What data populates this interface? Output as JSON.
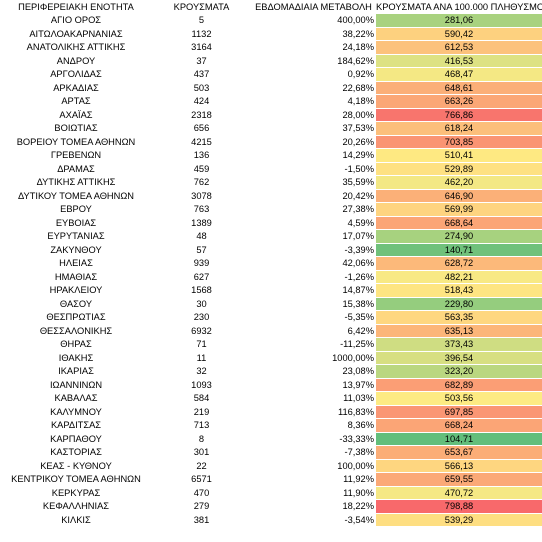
{
  "table": {
    "headers": {
      "region": "ΠΕΡΙΦΕΡΕΙΑΚΗ ΕΝΟΤΗΤΑ",
      "cases": "ΚΡΟΥΣΜΑΤΑ",
      "weekly_change": "ΕΒΔΟΜΑΔΙΑΙΑ ΜΕΤΑΒΟΛΗ",
      "per_100k": "ΚΡΟΥΣΜΑΤΑ ΑΝΑ 100.000 ΠΛΗΘΥΣΜΟ"
    },
    "rows": [
      {
        "region": "ΑΓΙΟ ΟΡΟΣ",
        "cases": "5",
        "change": "400,00%",
        "rate": "281,06",
        "color": "#a9d27f"
      },
      {
        "region": "ΑΙΤΩΛΟΑΚΑΡΝΑΝΙΑΣ",
        "cases": "1132",
        "change": "38,22%",
        "rate": "590,42",
        "color": "#fdd17f"
      },
      {
        "region": "ΑΝΑΤΟΛΙΚΗΣ ΑΤΤΙΚΗΣ",
        "cases": "3164",
        "change": "24,18%",
        "rate": "612,53",
        "color": "#fcc27c"
      },
      {
        "region": "ΑΝΔΡΟΥ",
        "cases": "37",
        "change": "184,62%",
        "rate": "416,53",
        "color": "#dde283"
      },
      {
        "region": "ΑΡΓΟΛΙΔΑΣ",
        "cases": "437",
        "change": "0,92%",
        "rate": "468,47",
        "color": "#f4e884"
      },
      {
        "region": "ΑΡΚΑΔΙΑΣ",
        "cases": "503",
        "change": "22,68%",
        "rate": "648,61",
        "color": "#fbaf78"
      },
      {
        "region": "ΑΡΤΑΣ",
        "cases": "424",
        "change": "4,18%",
        "rate": "663,26",
        "color": "#fba776"
      },
      {
        "region": "ΑΧΑΪΑΣ",
        "cases": "2318",
        "change": "28,00%",
        "rate": "766,86",
        "color": "#f8756d"
      },
      {
        "region": "ΒΟΙΩΤΙΑΣ",
        "cases": "656",
        "change": "37,53%",
        "rate": "618,24",
        "color": "#fcbf7b"
      },
      {
        "region": "ΒΟΡΕΙΟΥ ΤΟΜΕΑ ΑΘΗΝΩΝ",
        "cases": "4215",
        "change": "20,26%",
        "rate": "703,85",
        "color": "#fa9473"
      },
      {
        "region": "ΓΡΕΒΕΝΩΝ",
        "cases": "136",
        "change": "14,29%",
        "rate": "510,41",
        "color": "#fee982"
      },
      {
        "region": "ΔΡΑΜΑΣ",
        "cases": "459",
        "change": "-1,50%",
        "rate": "529,89",
        "color": "#fee182"
      },
      {
        "region": "ΔΥΤΙΚΗΣ ΑΤΤΙΚΗΣ",
        "cases": "762",
        "change": "35,59%",
        "rate": "462,20",
        "color": "#f3e884"
      },
      {
        "region": "ΔΥΤΙΚΟΥ ΤΟΜΕΑ ΑΘΗΝΩΝ",
        "cases": "3078",
        "change": "20,42%",
        "rate": "646,90",
        "color": "#fbb078"
      },
      {
        "region": "ΕΒΡΟΥ",
        "cases": "763",
        "change": "27,38%",
        "rate": "569,99",
        "color": "#fed480"
      },
      {
        "region": "ΕΥΒΟΙΑΣ",
        "cases": "1389",
        "change": "4,59%",
        "rate": "668,64",
        "color": "#fba576"
      },
      {
        "region": "ΕΥΡΥΤΑΝΙΑΣ",
        "cases": "48",
        "change": "17,07%",
        "rate": "274,90",
        "color": "#a7d27f"
      },
      {
        "region": "ΖΑΚΥΝΘΟΥ",
        "cases": "57",
        "change": "-3,39%",
        "rate": "140,71",
        "color": "#70c17b"
      },
      {
        "region": "ΗΛΕΙΑΣ",
        "cases": "939",
        "change": "42,06%",
        "rate": "628,72",
        "color": "#fcb97a"
      },
      {
        "region": "ΗΜΑΘΙΑΣ",
        "cases": "627",
        "change": "-1,26%",
        "rate": "482,21",
        "color": "#f8e984"
      },
      {
        "region": "ΗΡΑΚΛΕΙΟΥ",
        "cases": "1568",
        "change": "14,87%",
        "rate": "518,43",
        "color": "#fee582"
      },
      {
        "region": "ΘΑΣΟΥ",
        "cases": "30",
        "change": "15,38%",
        "rate": "229,80",
        "color": "#95cd7e"
      },
      {
        "region": "ΘΕΣΠΡΩΤΙΑΣ",
        "cases": "230",
        "change": "-5,35%",
        "rate": "563,35",
        "color": "#fed780"
      },
      {
        "region": "ΘΕΣΣΑΛΟΝΙΚΗΣ",
        "cases": "6932",
        "change": "6,42%",
        "rate": "635,13",
        "color": "#fcb679"
      },
      {
        "region": "ΘΗΡΑΣ",
        "cases": "71",
        "change": "-11,25%",
        "rate": "373,43",
        "color": "#cfdd82"
      },
      {
        "region": "ΙΘΑΚΗΣ",
        "cases": "11",
        "change": "1000,00%",
        "rate": "396,54",
        "color": "#d7df82"
      },
      {
        "region": "ΙΚΑΡΙΑΣ",
        "cases": "32",
        "change": "23,08%",
        "rate": "323,20",
        "color": "#bad780"
      },
      {
        "region": "ΙΩΑΝΝΙΝΩΝ",
        "cases": "1093",
        "change": "13,97%",
        "rate": "682,89",
        "color": "#fb9e75"
      },
      {
        "region": "ΚΑΒΑΛΑΣ",
        "cases": "584",
        "change": "11,03%",
        "rate": "503,56",
        "color": "#fdeb83"
      },
      {
        "region": "ΚΑΛΥΜΝΟΥ",
        "cases": "219",
        "change": "116,83%",
        "rate": "697,85",
        "color": "#fa9674"
      },
      {
        "region": "ΚΑΡΔΙΤΣΑΣ",
        "cases": "713",
        "change": "8,36%",
        "rate": "668,24",
        "color": "#fba576"
      },
      {
        "region": "ΚΑΡΠΑΘΟΥ",
        "cases": "8",
        "change": "-33,33%",
        "rate": "104,71",
        "color": "#63be7b"
      },
      {
        "region": "ΚΑΣΤΟΡΙΑΣ",
        "cases": "301",
        "change": "-7,38%",
        "rate": "653,67",
        "color": "#fbad77"
      },
      {
        "region": "ΚΕΑΣ - ΚΥΘΝΟΥ",
        "cases": "22",
        "change": "100,00%",
        "rate": "566,13",
        "color": "#fed680"
      },
      {
        "region": "ΚΕΝΤΡΙΚΟΥ ΤΟΜΕΑ ΑΘΗΝΩΝ",
        "cases": "6571",
        "change": "11,92%",
        "rate": "659,55",
        "color": "#fba977"
      },
      {
        "region": "ΚΕΡΚΥΡΑΣ",
        "cases": "470",
        "change": "11,90%",
        "rate": "470,72",
        "color": "#f5e884"
      },
      {
        "region": "ΚΕΦΑΛΛΗΝΙΑΣ",
        "cases": "279",
        "change": "18,22%",
        "rate": "798,88",
        "color": "#f8696b"
      },
      {
        "region": "ΚΙΛΚΙΣ",
        "cases": "381",
        "change": "-3,54%",
        "rate": "539,29",
        "color": "#fede81"
      }
    ]
  }
}
